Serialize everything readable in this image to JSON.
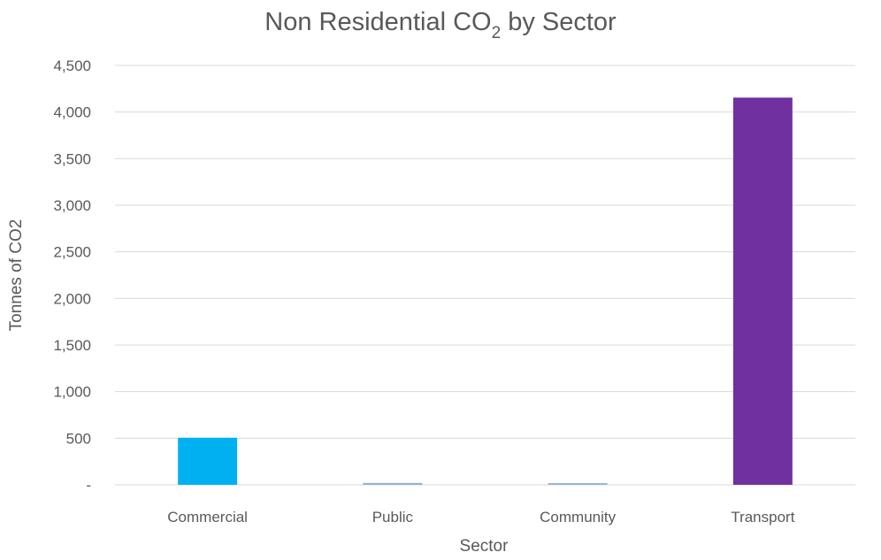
{
  "chart_data": {
    "type": "bar",
    "title": {
      "main": "Non Residential CO",
      "subscript": "2",
      "suffix": " by Sector"
    },
    "xlabel": "Sector",
    "ylabel": "Tonnes of CO2",
    "categories": [
      "Commercial",
      "Public",
      "Community",
      "Transport"
    ],
    "values": [
      505,
      20,
      18,
      4155
    ],
    "colors": [
      "#00b0f0",
      "#8eb4d4",
      "#8eb4d4",
      "#7030a0"
    ],
    "ylim": [
      0,
      4500
    ],
    "yticks": [
      0,
      500,
      1000,
      1500,
      2000,
      2500,
      3000,
      3500,
      4000,
      4500
    ],
    "ytick_labels": [
      "-",
      "500",
      "1,000",
      "1,500",
      "2,000",
      "2,500",
      "3,000",
      "3,500",
      "4,000",
      "4,500"
    ],
    "grid": true,
    "legend": "none"
  }
}
